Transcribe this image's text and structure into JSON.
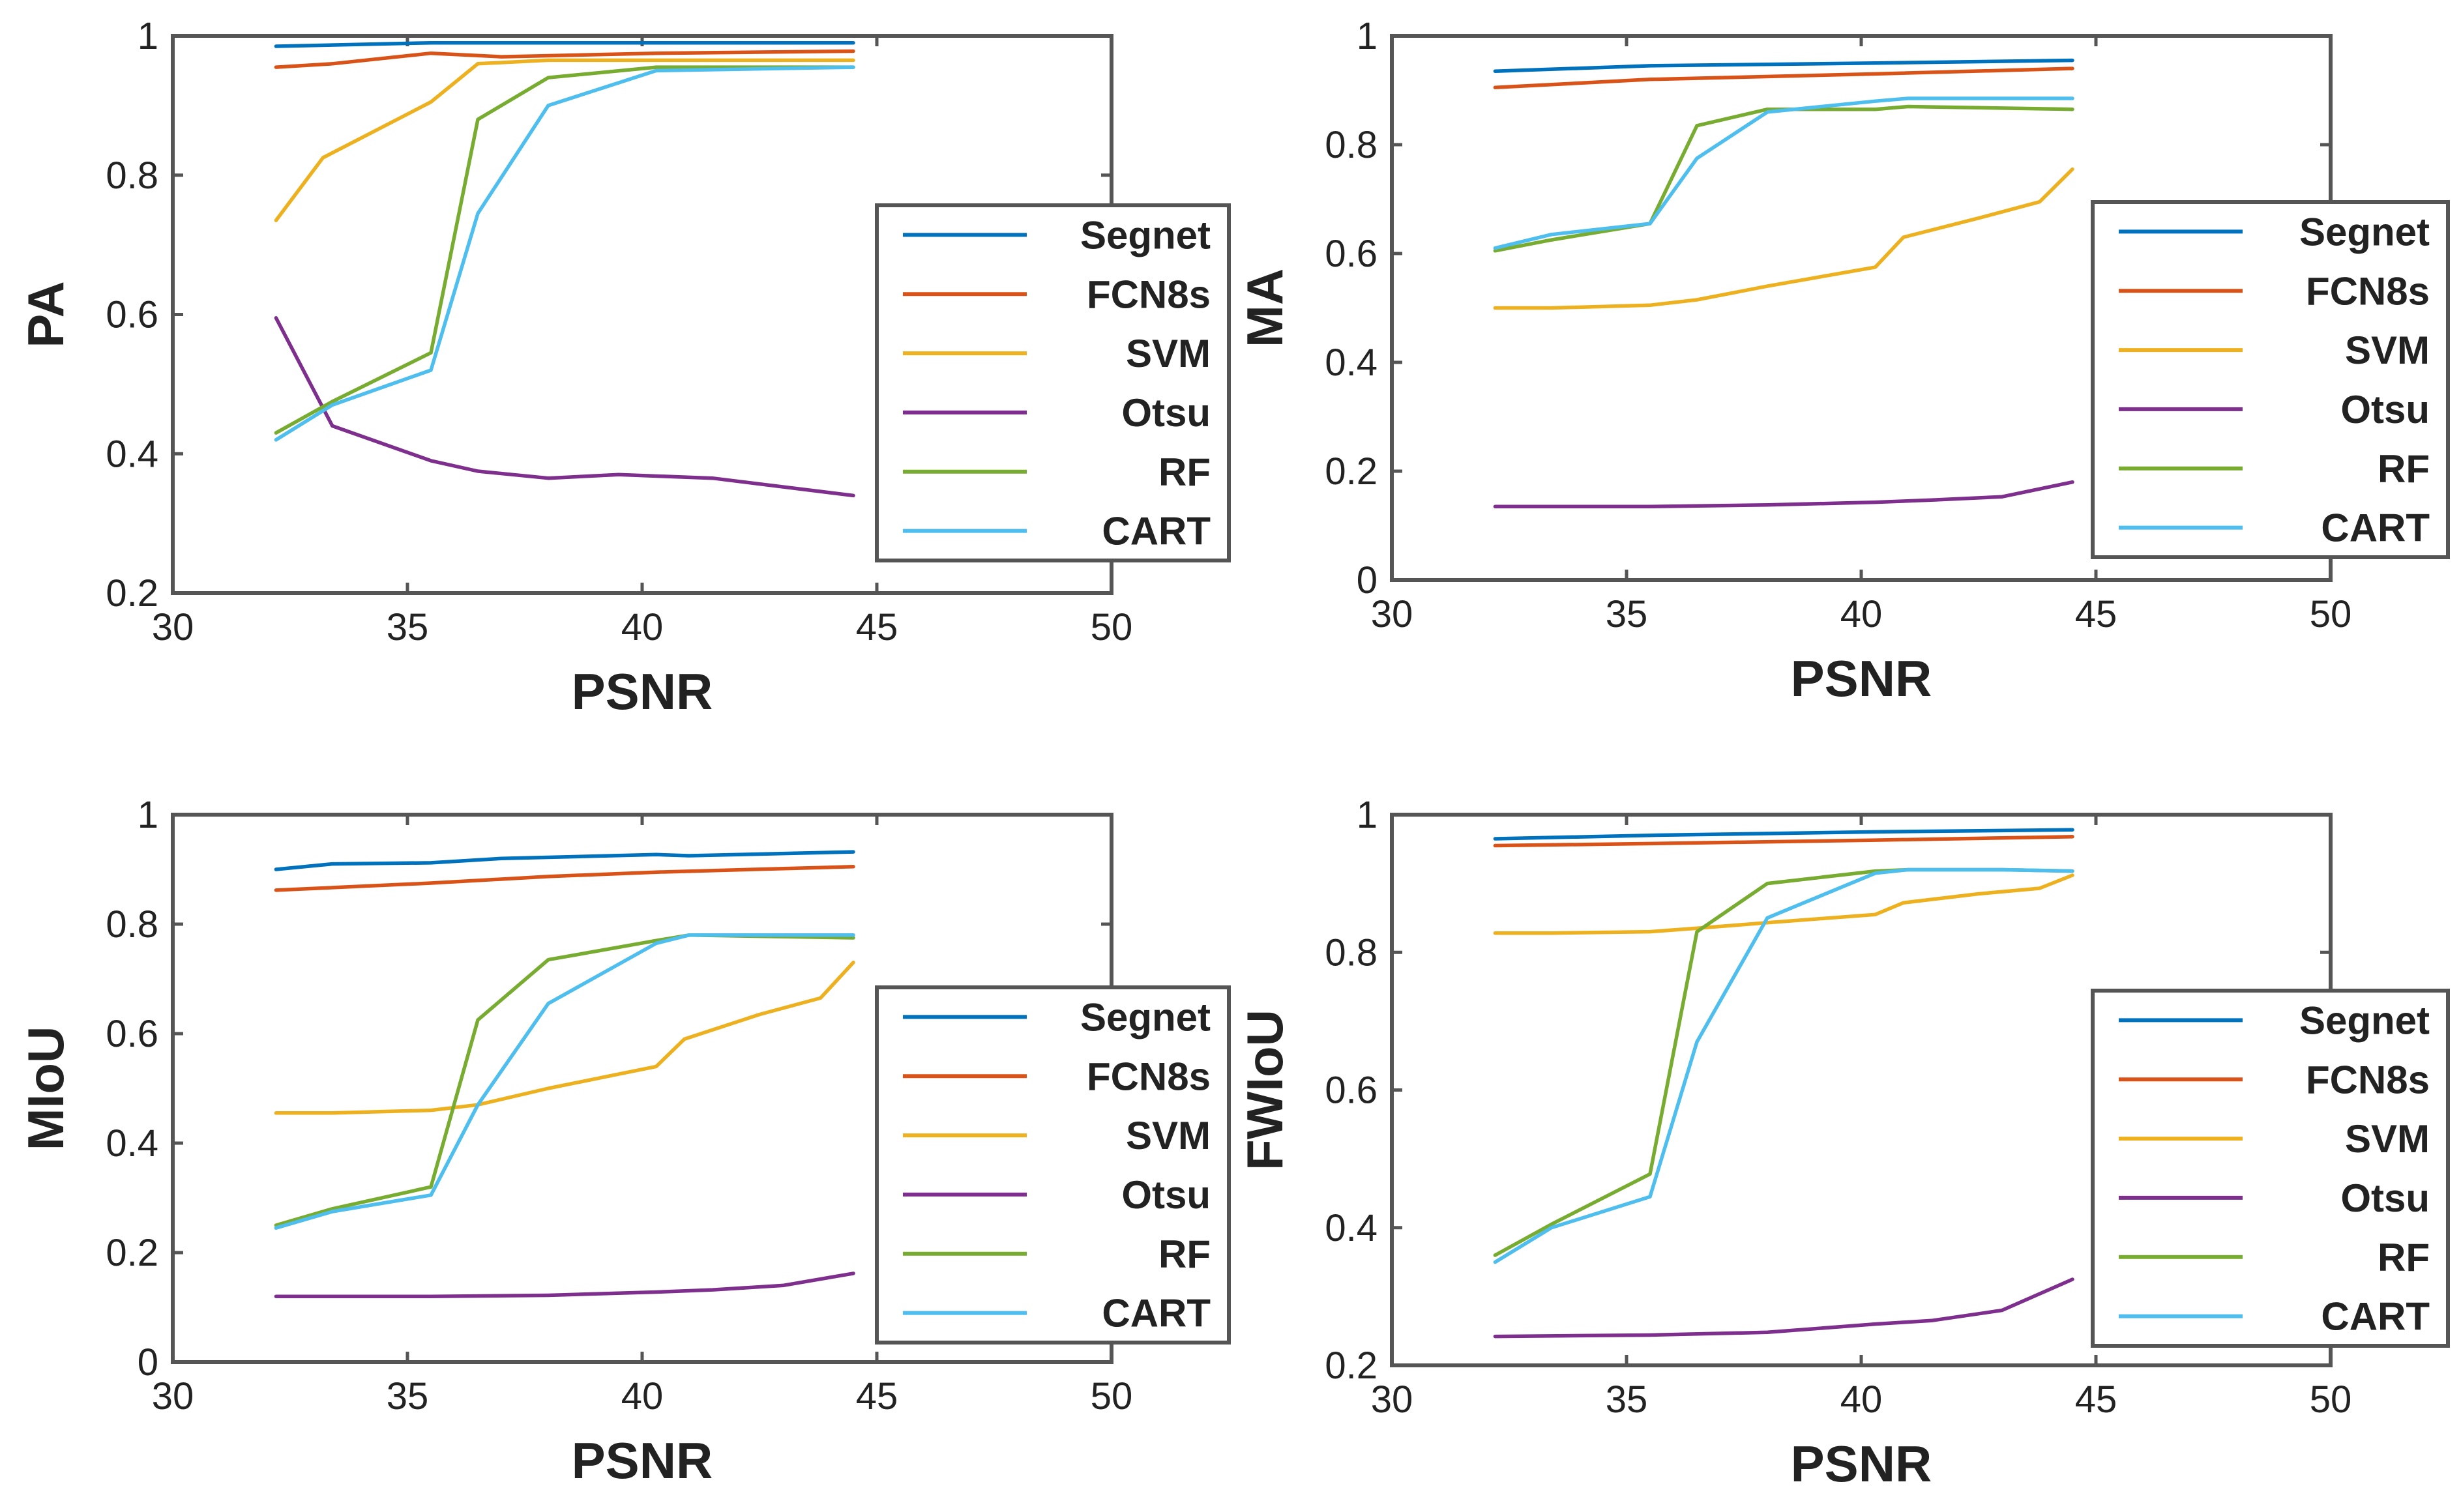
{
  "chart_data": [
    {
      "type": "line",
      "xlabel": "PSNR",
      "ylabel": "PA",
      "xlim": [
        30,
        50
      ],
      "ylim": [
        0.2,
        1
      ],
      "xticks": [
        "30",
        "35",
        "40",
        "45",
        "50"
      ],
      "yticks": [
        "0.2",
        "0.4",
        "0.6",
        "0.8",
        "1"
      ],
      "legend": "center-right",
      "series": [
        {
          "name": "Segnet",
          "color": "#0072BD",
          "x": [
            32.2,
            35.5,
            40.3,
            44.5
          ],
          "y": [
            0.985,
            0.99,
            0.99,
            0.99
          ]
        },
        {
          "name": "FCN8s",
          "color": "#D95319",
          "x": [
            32.2,
            33.4,
            35.5,
            37.0,
            40.3,
            44.5
          ],
          "y": [
            0.955,
            0.96,
            0.975,
            0.97,
            0.975,
            0.978
          ]
        },
        {
          "name": "SVM",
          "color": "#EDB120",
          "x": [
            32.2,
            33.2,
            35.5,
            36.5,
            38.0,
            40.3,
            44.5
          ],
          "y": [
            0.735,
            0.825,
            0.905,
            0.96,
            0.965,
            0.965,
            0.965
          ]
        },
        {
          "name": "Otsu",
          "color": "#7E2F8E",
          "x": [
            32.2,
            33.4,
            35.5,
            36.5,
            38.0,
            39.5,
            41.5,
            44.5
          ],
          "y": [
            0.595,
            0.44,
            0.39,
            0.375,
            0.365,
            0.37,
            0.365,
            0.34
          ]
        },
        {
          "name": "RF",
          "color": "#77AC30",
          "x": [
            32.2,
            33.4,
            35.5,
            36.5,
            38.0,
            40.3,
            44.5
          ],
          "y": [
            0.43,
            0.475,
            0.545,
            0.88,
            0.94,
            0.955,
            0.955
          ]
        },
        {
          "name": "CART",
          "color": "#4DBEEE",
          "x": [
            32.2,
            33.4,
            35.5,
            36.5,
            38.0,
            40.3,
            44.5
          ],
          "y": [
            0.42,
            0.47,
            0.52,
            0.745,
            0.9,
            0.95,
            0.955
          ]
        }
      ]
    },
    {
      "type": "line",
      "xlabel": "PSNR",
      "ylabel": "MA",
      "xlim": [
        30,
        50
      ],
      "ylim": [
        0,
        1
      ],
      "xticks": [
        "30",
        "35",
        "40",
        "45",
        "50"
      ],
      "yticks": [
        "0",
        "0.2",
        "0.4",
        "0.6",
        "0.8",
        "1"
      ],
      "legend": "center-right",
      "series": [
        {
          "name": "Segnet",
          "color": "#0072BD",
          "x": [
            32.2,
            35.5,
            40.3,
            44.5
          ],
          "y": [
            0.935,
            0.945,
            0.95,
            0.955
          ]
        },
        {
          "name": "FCN8s",
          "color": "#D95319",
          "x": [
            32.2,
            35.5,
            40.3,
            44.5
          ],
          "y": [
            0.905,
            0.92,
            0.93,
            0.94
          ]
        },
        {
          "name": "SVM",
          "color": "#EDB120",
          "x": [
            32.2,
            33.4,
            35.5,
            36.5,
            38.0,
            40.3,
            40.9,
            42.5,
            43.8,
            44.5
          ],
          "y": [
            0.5,
            0.5,
            0.505,
            0.515,
            0.54,
            0.575,
            0.63,
            0.665,
            0.695,
            0.755
          ]
        },
        {
          "name": "Otsu",
          "color": "#7E2F8E",
          "x": [
            32.2,
            35.5,
            38.0,
            40.3,
            41.5,
            43.0,
            44.5
          ],
          "y": [
            0.135,
            0.135,
            0.138,
            0.143,
            0.147,
            0.153,
            0.18
          ]
        },
        {
          "name": "RF",
          "color": "#77AC30",
          "x": [
            32.2,
            33.4,
            35.5,
            36.5,
            38.0,
            40.3,
            41.0,
            44.5
          ],
          "y": [
            0.605,
            0.625,
            0.655,
            0.835,
            0.865,
            0.865,
            0.87,
            0.865
          ]
        },
        {
          "name": "CART",
          "color": "#4DBEEE",
          "x": [
            32.2,
            33.4,
            35.5,
            36.5,
            38.0,
            40.3,
            41.0,
            44.5
          ],
          "y": [
            0.61,
            0.635,
            0.655,
            0.775,
            0.86,
            0.88,
            0.885,
            0.885
          ]
        }
      ]
    },
    {
      "type": "line",
      "xlabel": "PSNR",
      "ylabel": "MIoU",
      "xlim": [
        30,
        50
      ],
      "ylim": [
        0,
        1
      ],
      "xticks": [
        "30",
        "35",
        "40",
        "45",
        "50"
      ],
      "yticks": [
        "0",
        "0.2",
        "0.4",
        "0.6",
        "0.8",
        "1"
      ],
      "legend": "center-right",
      "series": [
        {
          "name": "Segnet",
          "color": "#0072BD",
          "x": [
            32.2,
            33.4,
            35.5,
            37.0,
            40.3,
            41.0,
            44.5
          ],
          "y": [
            0.9,
            0.91,
            0.912,
            0.92,
            0.927,
            0.925,
            0.932
          ]
        },
        {
          "name": "FCN8s",
          "color": "#D95319",
          "x": [
            32.2,
            35.5,
            38.0,
            40.3,
            44.5
          ],
          "y": [
            0.862,
            0.875,
            0.887,
            0.895,
            0.905
          ]
        },
        {
          "name": "SVM",
          "color": "#EDB120",
          "x": [
            32.2,
            33.4,
            35.5,
            36.5,
            38.0,
            40.3,
            40.9,
            42.5,
            43.8,
            44.5
          ],
          "y": [
            0.455,
            0.455,
            0.46,
            0.47,
            0.5,
            0.54,
            0.59,
            0.635,
            0.665,
            0.73
          ]
        },
        {
          "name": "Otsu",
          "color": "#7E2F8E",
          "x": [
            32.2,
            35.5,
            38.0,
            40.3,
            41.5,
            43.0,
            44.5
          ],
          "y": [
            0.12,
            0.12,
            0.122,
            0.128,
            0.132,
            0.14,
            0.162
          ]
        },
        {
          "name": "RF",
          "color": "#77AC30",
          "x": [
            32.2,
            33.4,
            35.5,
            36.5,
            38.0,
            40.3,
            41.0,
            44.5
          ],
          "y": [
            0.25,
            0.28,
            0.32,
            0.625,
            0.735,
            0.77,
            0.78,
            0.775
          ]
        },
        {
          "name": "CART",
          "color": "#4DBEEE",
          "x": [
            32.2,
            33.4,
            35.5,
            36.5,
            38.0,
            40.3,
            41.0,
            44.5
          ],
          "y": [
            0.245,
            0.275,
            0.305,
            0.47,
            0.655,
            0.765,
            0.78,
            0.78
          ]
        }
      ]
    },
    {
      "type": "line",
      "xlabel": "PSNR",
      "ylabel": "FWIoU",
      "xlim": [
        30,
        50
      ],
      "ylim": [
        0.2,
        1
      ],
      "xticks": [
        "30",
        "35",
        "40",
        "45",
        "50"
      ],
      "yticks": [
        "0.2",
        "0.4",
        "0.6",
        "0.8",
        "1"
      ],
      "legend": "center-right",
      "series": [
        {
          "name": "Segnet",
          "color": "#0072BD",
          "x": [
            32.2,
            35.5,
            40.3,
            44.5
          ],
          "y": [
            0.965,
            0.97,
            0.975,
            0.978
          ]
        },
        {
          "name": "FCN8s",
          "color": "#D95319",
          "x": [
            32.2,
            35.5,
            40.3,
            44.5
          ],
          "y": [
            0.955,
            0.958,
            0.963,
            0.968
          ]
        },
        {
          "name": "SVM",
          "color": "#EDB120",
          "x": [
            32.2,
            33.4,
            35.5,
            36.5,
            38.0,
            40.3,
            40.9,
            42.5,
            43.8,
            44.5
          ],
          "y": [
            0.828,
            0.828,
            0.83,
            0.835,
            0.843,
            0.855,
            0.872,
            0.885,
            0.893,
            0.912
          ]
        },
        {
          "name": "Otsu",
          "color": "#7E2F8E",
          "x": [
            32.2,
            35.5,
            38.0,
            40.3,
            41.5,
            43.0,
            44.5
          ],
          "y": [
            0.242,
            0.244,
            0.248,
            0.26,
            0.265,
            0.28,
            0.325
          ]
        },
        {
          "name": "RF",
          "color": "#77AC30",
          "x": [
            32.2,
            33.4,
            35.5,
            36.5,
            38.0,
            40.3,
            41.0,
            43.0,
            44.5
          ],
          "y": [
            0.36,
            0.405,
            0.478,
            0.83,
            0.9,
            0.918,
            0.92,
            0.92,
            0.918
          ]
        },
        {
          "name": "CART",
          "color": "#4DBEEE",
          "x": [
            32.2,
            33.4,
            35.5,
            36.5,
            38.0,
            40.3,
            41.0,
            43.0,
            44.5
          ],
          "y": [
            0.35,
            0.4,
            0.445,
            0.67,
            0.85,
            0.915,
            0.92,
            0.92,
            0.918
          ]
        }
      ]
    }
  ]
}
